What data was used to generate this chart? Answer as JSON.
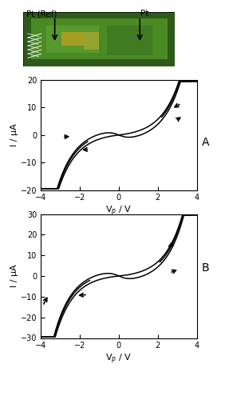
{
  "xlabel_A": "V$_p$ / V",
  "xlabel_B": "V$_p$ / V",
  "ylabel": "I / μA",
  "xlim": [
    -4,
    4
  ],
  "ylim_A": [
    -20,
    20
  ],
  "ylim_B": [
    -30,
    30
  ],
  "xticks": [
    -4,
    -2,
    0,
    2,
    4
  ],
  "yticks_A": [
    -20,
    -10,
    0,
    10,
    20
  ],
  "yticks_B": [
    -30,
    -20,
    -10,
    0,
    10,
    20,
    30
  ],
  "line_color": "black",
  "label_pt_ref": "Pt (Ref)",
  "label_pt": "Pt",
  "label_A": "A",
  "label_B": "B"
}
